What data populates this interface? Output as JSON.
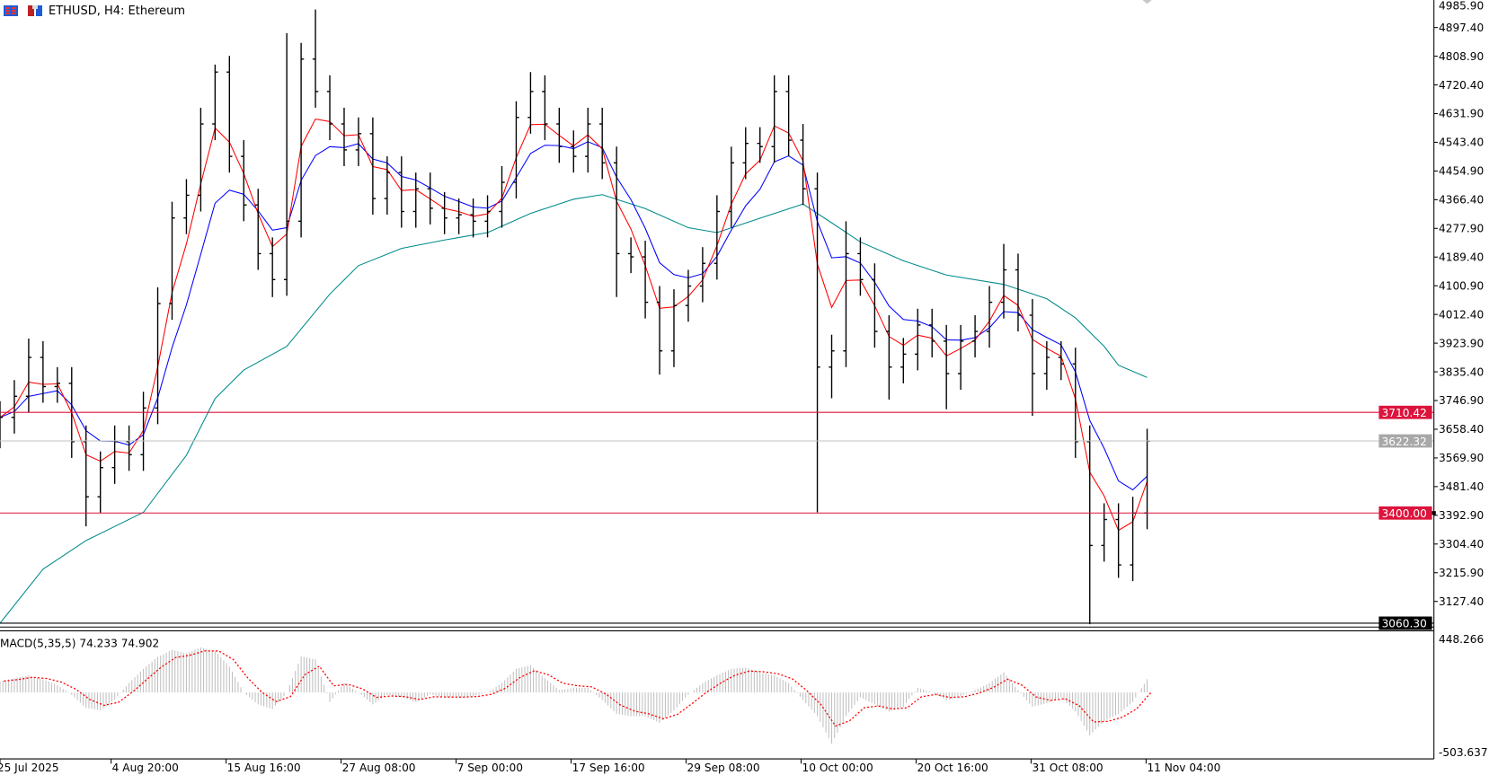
{
  "header": {
    "title": "ETHUSD, H4:  Ethereum",
    "icons": [
      "chart-type-icon",
      "timeframe-icon"
    ]
  },
  "colors": {
    "bars": "#000000",
    "ma_fast": "#ff0000",
    "ma_mid": "#0000ff",
    "ma_slow": "#008b8b",
    "level": "#dc143c",
    "bid_line": "#c0c0c0",
    "macd_hist": "#c0c0c0",
    "macd_signal": "#ff0000"
  },
  "chart_data": [
    {
      "type": "ohlc",
      "symbol": "ETHUSD",
      "timeframe": "H4",
      "y_ticks": [
        "4985.90",
        "4897.40",
        "4808.90",
        "4720.40",
        "4631.90",
        "4543.40",
        "4454.90",
        "4366.40",
        "4277.90",
        "4189.40",
        "4100.90",
        "4012.40",
        "3923.90",
        "3835.40",
        "3746.90",
        "3658.40",
        "3569.90",
        "3481.40",
        "3392.90",
        "3304.40",
        "3215.90",
        "3127.40"
      ],
      "ylim": [
        3043,
        4995
      ],
      "x_tick_labels": [
        "25 Jul 2025",
        "4 Aug 20:00",
        "15 Aug 16:00",
        "27 Aug 08:00",
        "7 Sep 00:00",
        "17 Sep 16:00",
        "29 Sep 08:00",
        "10 Oct 00:00",
        "20 Oct 16:00",
        "31 Oct 08:00",
        "11 Nov 04:00"
      ],
      "open": [
        3650,
        3695,
        3760,
        3880,
        3790,
        3800,
        3620,
        3450,
        3540,
        3620,
        3580,
        3724,
        4046,
        4310,
        4380,
        4600,
        4760,
        4500,
        4350,
        4200,
        4120,
        4300,
        4800,
        4700,
        4600,
        4520,
        4570,
        4370,
        4450,
        4330,
        4400,
        4340,
        4310,
        4320,
        4300,
        4330,
        4420,
        4620,
        4700,
        4600,
        4530,
        4500,
        4600,
        4480,
        4200,
        4190,
        4050,
        3900,
        4040,
        4100,
        4170,
        4330,
        4480,
        4540,
        4530,
        4700,
        4550,
        4400,
        3850,
        3900,
        4200,
        4120,
        3960,
        3850,
        3890,
        3980,
        3930,
        3830,
        3930,
        3960,
        4050,
        4150,
        4010,
        3830,
        3880,
        3860,
        3620,
        3300,
        3380,
        3240,
        3400
      ],
      "high": [
        3745,
        3810,
        3938,
        3930,
        3850,
        3850,
        3670,
        3590,
        3670,
        3670,
        3774,
        4096,
        4360,
        4430,
        4650,
        4783,
        4810,
        4550,
        4400,
        4250,
        4880,
        4850,
        4953,
        4750,
        4650,
        4620,
        4620,
        4500,
        4500,
        4450,
        4450,
        4390,
        4370,
        4370,
        4380,
        4470,
        4670,
        4760,
        4750,
        4650,
        4580,
        4650,
        4650,
        4530,
        4250,
        4240,
        4100,
        4090,
        4150,
        4220,
        4380,
        4530,
        4590,
        4590,
        4750,
        4750,
        4600,
        4450,
        3950,
        4300,
        4250,
        4170,
        4010,
        3940,
        4030,
        4030,
        3980,
        3980,
        4010,
        4100,
        4230,
        4200,
        4060,
        3930,
        3930,
        3910,
        3670,
        3430,
        3430,
        3450,
        3660
      ],
      "low": [
        3600,
        3645,
        3710,
        3740,
        3740,
        3570,
        3359,
        3400,
        3490,
        3530,
        3530,
        3674,
        3996,
        4260,
        4330,
        4550,
        4450,
        4300,
        4150,
        4066,
        4070,
        4250,
        4650,
        4550,
        4470,
        4470,
        4320,
        4320,
        4280,
        4280,
        4290,
        4260,
        4260,
        4250,
        4250,
        4280,
        4370,
        4570,
        4550,
        4480,
        4450,
        4450,
        4430,
        4066,
        4140,
        4000,
        3827,
        3850,
        3990,
        4050,
        4120,
        4280,
        4430,
        4480,
        4480,
        4500,
        4350,
        3402,
        3754,
        3850,
        4070,
        3910,
        3750,
        3800,
        3840,
        3880,
        3720,
        3780,
        3880,
        3910,
        4000,
        3960,
        3700,
        3780,
        3810,
        3570,
        3057,
        3250,
        3200,
        3190,
        3350
      ],
      "close": [
        3695,
        3760,
        3880,
        3790,
        3800,
        3620,
        3450,
        3540,
        3620,
        3580,
        3724,
        4046,
        4310,
        4380,
        4600,
        4760,
        4500,
        4350,
        4200,
        4120,
        4300,
        4800,
        4700,
        4600,
        4520,
        4570,
        4370,
        4450,
        4330,
        4400,
        4340,
        4310,
        4320,
        4300,
        4330,
        4420,
        4620,
        4700,
        4600,
        4530,
        4500,
        4600,
        4480,
        4200,
        4190,
        4050,
        3900,
        4040,
        4100,
        4170,
        4330,
        4480,
        4540,
        4530,
        4700,
        4550,
        4400,
        3850,
        3900,
        4200,
        4120,
        3960,
        3850,
        3890,
        3980,
        3930,
        3830,
        3930,
        3960,
        4050,
        4150,
        4010,
        3830,
        3880,
        3860,
        3620,
        3300,
        3380,
        3240,
        3400,
        3622
      ],
      "slow_ma": [
        [
          0,
          3060
        ],
        [
          3,
          3227
        ],
        [
          6,
          3315
        ],
        [
          10,
          3402
        ],
        [
          13,
          3578
        ],
        [
          15,
          3753
        ],
        [
          17,
          3841
        ],
        [
          20,
          3914
        ],
        [
          23,
          4075
        ],
        [
          25,
          4163
        ],
        [
          28,
          4216
        ],
        [
          31,
          4242
        ],
        [
          34,
          4265
        ],
        [
          37,
          4324
        ],
        [
          40,
          4368
        ],
        [
          42,
          4382
        ],
        [
          45,
          4339
        ],
        [
          48,
          4280
        ],
        [
          50,
          4265
        ],
        [
          53,
          4309
        ],
        [
          56,
          4353
        ],
        [
          58,
          4295
        ],
        [
          60,
          4236
        ],
        [
          63,
          4178
        ],
        [
          66,
          4134
        ],
        [
          70,
          4105
        ],
        [
          73,
          4061
        ],
        [
          75,
          4002
        ],
        [
          77,
          3914
        ],
        [
          78,
          3856
        ],
        [
          80,
          3818
        ]
      ],
      "levels": [
        {
          "value": "3710.42",
          "kind": "horizontal-line"
        },
        {
          "value": "3400.00",
          "kind": "horizontal-line"
        }
      ],
      "bid": "3622.32",
      "low_marker": "3060.30",
      "grid": false
    },
    {
      "type": "bar",
      "title": "MACD(5,35,5) 74.233 74.902",
      "ylim": [
        -503.637,
        448.266
      ],
      "y_tick_labels": [
        "448.266",
        "-503.637"
      ],
      "values": [
        96,
        120,
        144,
        110,
        64,
        -20,
        -130,
        -150,
        -60,
        80,
        200,
        300,
        360,
        330,
        380,
        350,
        220,
        0,
        -100,
        -140,
        0,
        304,
        280,
        -80,
        80,
        0,
        -100,
        -20,
        -40,
        -80,
        -16,
        -40,
        -40,
        -30,
        0,
        80,
        200,
        230,
        120,
        20,
        40,
        40,
        -64,
        -180,
        -200,
        -200,
        -256,
        -150,
        -20,
        80,
        144,
        200,
        210,
        170,
        144,
        80,
        -64,
        -200,
        -430,
        -200,
        -40,
        -100,
        -160,
        -120,
        40,
        0,
        -64,
        -30,
        20,
        80,
        170,
        20,
        -120,
        -90,
        -40,
        -160,
        -360,
        -240,
        -180,
        -80,
        112
      ]
    }
  ]
}
